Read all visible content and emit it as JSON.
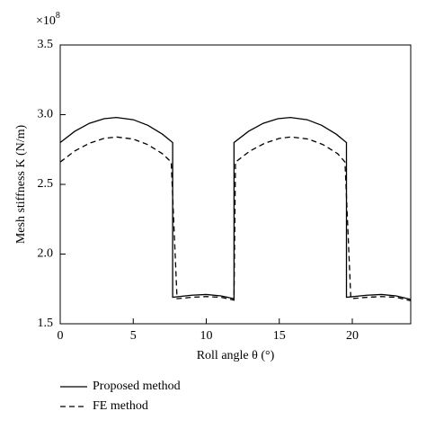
{
  "chart_data": {
    "type": "line",
    "xlabel": "Roll angle θ (°)",
    "ylabel": "Mesh stiffness K (N/m)",
    "y_multiplier": "×10",
    "y_multiplier_exponent": "8",
    "xlim": [
      0,
      24
    ],
    "xticks": [
      0,
      5,
      10,
      15,
      20
    ],
    "ylim": [
      1.5,
      3.5
    ],
    "yticks": [
      1.5,
      {
        "value": 2.0,
        "label": "2.0"
      },
      2.5,
      {
        "value": 3.0,
        "label": "3.0"
      },
      3.5
    ],
    "legend": "bottom-left",
    "series": [
      {
        "name": "Proposed method",
        "color": "#000000",
        "dash": "solid",
        "x": [
          0,
          1,
          2,
          3,
          3.85,
          5,
          6,
          7,
          7.7,
          7.7,
          9,
          10,
          11,
          11.9,
          11.9,
          12.9,
          13.9,
          14.9,
          15.75,
          16.9,
          17.9,
          18.9,
          19.6,
          19.6,
          21,
          22,
          23,
          24
        ],
        "values": [
          2.8,
          2.881,
          2.938,
          2.971,
          2.98,
          2.964,
          2.924,
          2.86,
          2.8,
          1.69,
          1.705,
          1.71,
          1.7,
          1.68,
          2.8,
          2.881,
          2.938,
          2.971,
          2.98,
          2.964,
          2.924,
          2.86,
          2.8,
          1.69,
          1.705,
          1.71,
          1.7,
          1.675
        ]
      },
      {
        "name": "FE method",
        "color": "#000000",
        "dash": "dashed",
        "x": [
          0,
          1,
          2,
          3,
          3.85,
          5,
          6,
          7,
          7.6,
          8.0,
          9,
          10,
          11,
          11.9,
          12.0,
          13,
          14,
          15,
          15.8,
          17,
          18,
          19,
          19.5,
          19.9,
          21,
          22,
          23,
          24
        ],
        "values": [
          2.66,
          2.74,
          2.795,
          2.83,
          2.84,
          2.825,
          2.785,
          2.72,
          2.66,
          1.68,
          1.69,
          1.695,
          1.69,
          1.67,
          2.66,
          2.74,
          2.795,
          2.83,
          2.84,
          2.825,
          2.785,
          2.72,
          2.66,
          1.68,
          1.69,
          1.695,
          1.69,
          1.665
        ]
      }
    ]
  }
}
